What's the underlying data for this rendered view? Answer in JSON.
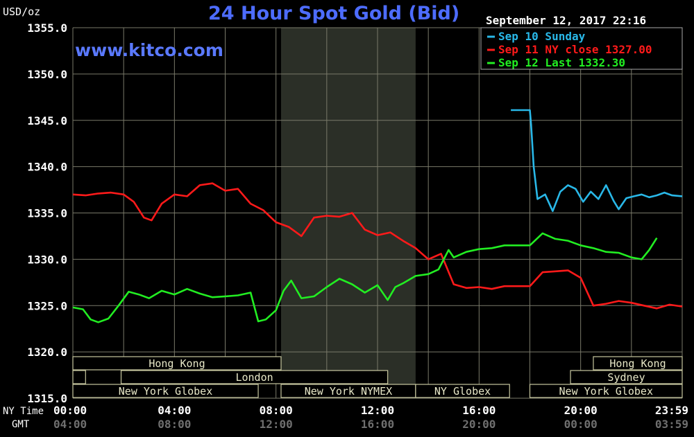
{
  "header": {
    "title": "24 Hour Spot Gold (Bid)",
    "website": "www.kitco.com",
    "unit": "USD/oz",
    "timestamp": "September 12, 2017 22:16"
  },
  "colors": {
    "background": "#000000",
    "grid": "#7a7a6a",
    "sep10": "#29b8e8",
    "sep11": "#ff1a1a",
    "sep12": "#22ee22",
    "title": "#4d6cff",
    "market_box": "#c8c8a0"
  },
  "legend": {
    "placement": "top-right",
    "items": [
      {
        "label": "Sep 10 Sunday",
        "color": "#29b8e8"
      },
      {
        "label": "Sep 11 NY close 1327.00",
        "color": "#ff1a1a"
      },
      {
        "label": "Sep 12 Last 1332.30",
        "color": "#22ee22"
      }
    ]
  },
  "axis_row_labels": {
    "ny_time": "NY Time",
    "gmt": "GMT"
  },
  "markets": [
    {
      "label": "Hong Kong",
      "start": 0.0,
      "end": 8.2
    },
    {
      "label": "",
      "start": 0.0,
      "end": 0.5
    },
    {
      "label": "London",
      "start": 1.9,
      "end": 12.4
    },
    {
      "label": "New York Globex",
      "start": 0.0,
      "end": 7.3
    },
    {
      "label": "New York NYMEX",
      "start": 8.2,
      "end": 13.5
    },
    {
      "label": "NY Globex",
      "start": 13.5,
      "end": 17.2
    },
    {
      "label": "Hong Kong",
      "start": 20.5,
      "end": 24.0
    },
    {
      "label": "Sydney",
      "start": 19.6,
      "end": 24.0
    },
    {
      "label": "New York Globex",
      "start": 18.0,
      "end": 24.0
    }
  ],
  "chart_data": {
    "type": "line",
    "title": "24 Hour Spot Gold (Bid)",
    "ylabel": "USD/oz",
    "xlabel": "",
    "ylim": [
      1315.0,
      1355.0
    ],
    "xlim": [
      0,
      24
    ],
    "grid": true,
    "shaded_region_hours": [
      8.2,
      13.5
    ],
    "y_ticks": [
      "1315.0",
      "1320.0",
      "1325.0",
      "1330.0",
      "1335.0",
      "1340.0",
      "1345.0",
      "1350.0",
      "1355.0"
    ],
    "x_ticks_ny": [
      "00:00",
      "04:00",
      "08:00",
      "12:00",
      "16:00",
      "20:00",
      "23:59"
    ],
    "x_ticks_gmt": [
      "04:00",
      "08:00",
      "12:00",
      "16:00",
      "20:00",
      "00:00",
      "03:59"
    ],
    "series": [
      {
        "name": "Sep 10 Sunday",
        "x": [
          17.25,
          17.6,
          18.0,
          18.05,
          18.15,
          18.3,
          18.6,
          18.9,
          19.2,
          19.5,
          19.8,
          20.1,
          20.4,
          20.7,
          21.0,
          21.3,
          21.5,
          21.8,
          22.1,
          22.4,
          22.7,
          23.0,
          23.3,
          23.6,
          24.0
        ],
        "values": [
          1346.1,
          1346.1,
          1346.1,
          1344.5,
          1340.0,
          1336.5,
          1337.0,
          1335.2,
          1337.3,
          1338.0,
          1337.6,
          1336.2,
          1337.3,
          1336.5,
          1338.0,
          1336.3,
          1335.4,
          1336.6,
          1336.8,
          1337.0,
          1336.7,
          1336.9,
          1337.2,
          1336.9,
          1336.8
        ]
      },
      {
        "name": "Sep 11 NY close 1327.00",
        "x": [
          0.0,
          0.5,
          1.0,
          1.5,
          2.0,
          2.4,
          2.8,
          3.1,
          3.5,
          4.0,
          4.5,
          5.0,
          5.5,
          6.0,
          6.5,
          7.0,
          7.5,
          8.0,
          8.5,
          9.0,
          9.5,
          10.0,
          10.5,
          11.0,
          11.5,
          12.0,
          12.5,
          13.0,
          13.5,
          14.0,
          14.5,
          15.0,
          15.5,
          16.0,
          16.5,
          17.0,
          17.5,
          18.0,
          18.5,
          19.0,
          19.5,
          20.0,
          20.5,
          21.0,
          21.5,
          22.0,
          22.5,
          23.0,
          23.5,
          24.0
        ],
        "values": [
          1337.0,
          1336.9,
          1337.1,
          1337.2,
          1337.0,
          1336.2,
          1334.5,
          1334.2,
          1336.0,
          1337.0,
          1336.8,
          1338.0,
          1338.2,
          1337.4,
          1337.6,
          1336.0,
          1335.3,
          1334.0,
          1333.5,
          1332.5,
          1334.5,
          1334.7,
          1334.6,
          1335.0,
          1333.2,
          1332.6,
          1332.9,
          1332.0,
          1331.2,
          1330.0,
          1330.6,
          1327.3,
          1326.9,
          1327.0,
          1326.8,
          1327.1,
          1327.1,
          1327.1,
          1328.6,
          1328.7,
          1328.8,
          1328.0,
          1325.0,
          1325.2,
          1325.5,
          1325.3,
          1325.0,
          1324.7,
          1325.1,
          1324.9
        ]
      },
      {
        "name": "Sep 12 Last 1332.30",
        "x": [
          0.0,
          0.4,
          0.7,
          1.0,
          1.4,
          1.8,
          2.2,
          2.6,
          3.0,
          3.5,
          4.0,
          4.5,
          5.0,
          5.5,
          6.0,
          6.5,
          7.0,
          7.3,
          7.6,
          8.0,
          8.3,
          8.6,
          9.0,
          9.5,
          10.0,
          10.5,
          11.0,
          11.5,
          12.0,
          12.4,
          12.7,
          13.0,
          13.5,
          14.0,
          14.4,
          14.8,
          15.0,
          15.5,
          16.0,
          16.5,
          17.0,
          17.5,
          18.0,
          18.5,
          19.0,
          19.5,
          20.0,
          20.5,
          21.0,
          21.5,
          22.0,
          22.4,
          22.7,
          23.0
        ],
        "values": [
          1324.8,
          1324.6,
          1323.5,
          1323.2,
          1323.6,
          1325.0,
          1326.5,
          1326.2,
          1325.8,
          1326.6,
          1326.2,
          1326.8,
          1326.3,
          1325.9,
          1326.0,
          1326.1,
          1326.4,
          1323.3,
          1323.5,
          1324.5,
          1326.6,
          1327.7,
          1325.8,
          1326.0,
          1327.0,
          1327.9,
          1327.3,
          1326.4,
          1327.2,
          1325.6,
          1327.0,
          1327.4,
          1328.2,
          1328.4,
          1328.9,
          1331.0,
          1330.2,
          1330.8,
          1331.1,
          1331.2,
          1331.5,
          1331.5,
          1331.5,
          1332.8,
          1332.2,
          1332.0,
          1331.5,
          1331.2,
          1330.8,
          1330.7,
          1330.2,
          1330.0,
          1331.0,
          1332.3
        ]
      }
    ]
  }
}
